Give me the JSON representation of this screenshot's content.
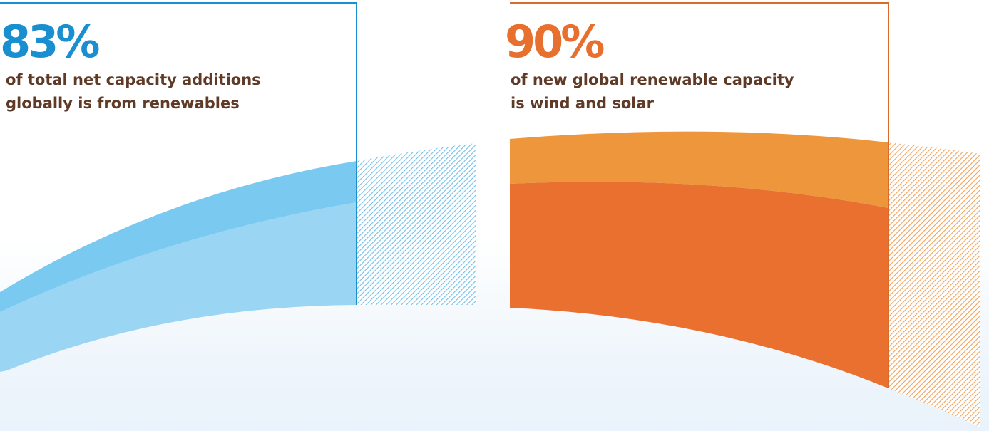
{
  "left": {
    "value": "83%",
    "description": "of total net capacity additions\nglobally is from renewables",
    "color": "#1a8fd0",
    "band_light": "#9ad5f3",
    "band_dark": "#79c9f1",
    "level": 0.83
  },
  "right": {
    "value": "90%",
    "description": "of new global renewable capacity\nis wind and solar",
    "color": "#e8702f",
    "band_light": "#ee963b",
    "band_dark": "#ea7030",
    "level": 0.9
  },
  "text_color": "#5f3a26"
}
